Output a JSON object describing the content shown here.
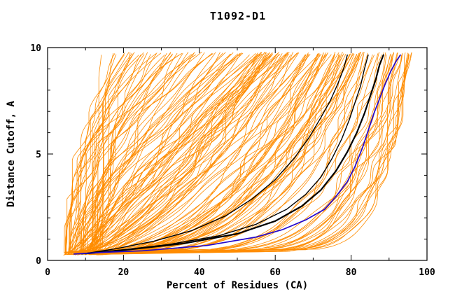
{
  "chart_data": {
    "type": "line",
    "title": "T1092-D1",
    "xlabel": "Percent of Residues (CA)",
    "ylabel": "Distance Cutoff, A",
    "xlim": [
      0,
      100
    ],
    "ylim": [
      0,
      10
    ],
    "x_major_ticks": [
      0,
      20,
      40,
      60,
      80,
      100
    ],
    "x_minor_step": 10,
    "y_major_ticks": [
      0,
      5,
      10
    ],
    "y_minor_step": 1,
    "grid": false,
    "legend": "none",
    "frame_color": "#000000",
    "ensemble": {
      "color": "#ff8c00",
      "count": 170,
      "seed": 1092,
      "x_start_range": [
        4,
        15
      ],
      "x_end_groups": [
        {
          "prob": 0.15,
          "range": [
            14,
            28
          ]
        },
        {
          "prob": 0.3,
          "range": [
            26,
            60
          ]
        },
        {
          "prob": 0.55,
          "range": [
            55,
            96
          ]
        }
      ],
      "y_start": 0.3,
      "y_end": 9.65
    },
    "series": [
      {
        "name": "highlight-black-1",
        "color": "#000000",
        "width": 1.4,
        "points": [
          [
            9,
            0.3
          ],
          [
            18,
            0.55
          ],
          [
            28,
            0.9
          ],
          [
            38,
            1.4
          ],
          [
            47,
            2.1
          ],
          [
            54,
            2.9
          ],
          [
            60,
            3.8
          ],
          [
            65,
            4.8
          ],
          [
            69,
            5.8
          ],
          [
            72,
            6.7
          ],
          [
            74.5,
            7.5
          ],
          [
            76.5,
            8.3
          ],
          [
            78,
            9.0
          ],
          [
            79,
            9.65
          ]
        ]
      },
      {
        "name": "highlight-black-2",
        "color": "#000000",
        "width": 2.2,
        "points": [
          [
            10,
            0.32
          ],
          [
            22,
            0.52
          ],
          [
            36,
            0.8
          ],
          [
            50,
            1.25
          ],
          [
            60,
            1.85
          ],
          [
            67,
            2.55
          ],
          [
            72,
            3.3
          ],
          [
            76,
            4.2
          ],
          [
            79,
            5.1
          ],
          [
            81.5,
            6.0
          ],
          [
            83.5,
            6.9
          ],
          [
            85,
            7.7
          ],
          [
            86.5,
            8.5
          ],
          [
            87.5,
            9.2
          ],
          [
            88.5,
            9.65
          ]
        ]
      },
      {
        "name": "highlight-black-3",
        "color": "#000000",
        "width": 1.4,
        "points": [
          [
            9,
            0.32
          ],
          [
            20,
            0.5
          ],
          [
            32,
            0.75
          ],
          [
            45,
            1.15
          ],
          [
            55,
            1.7
          ],
          [
            63,
            2.4
          ],
          [
            68,
            3.1
          ],
          [
            72,
            3.9
          ],
          [
            75,
            4.8
          ],
          [
            77.5,
            5.7
          ],
          [
            79.5,
            6.6
          ],
          [
            81,
            7.4
          ],
          [
            82.5,
            8.2
          ],
          [
            83.5,
            9.0
          ],
          [
            84.5,
            9.65
          ]
        ]
      },
      {
        "name": "reference-blue",
        "color": "#2408cc",
        "width": 1.7,
        "points": [
          [
            7,
            0.3
          ],
          [
            15,
            0.38
          ],
          [
            25,
            0.45
          ],
          [
            42,
            0.7
          ],
          [
            55,
            1.1
          ],
          [
            62,
            1.45
          ],
          [
            68,
            1.9
          ],
          [
            73,
            2.4
          ],
          [
            76,
            3.0
          ],
          [
            79,
            3.7
          ],
          [
            81,
            4.4
          ],
          [
            83,
            5.3
          ],
          [
            84.5,
            6.1
          ],
          [
            86,
            6.9
          ],
          [
            87.5,
            7.6
          ],
          [
            89,
            8.3
          ],
          [
            90.5,
            8.9
          ],
          [
            92,
            9.4
          ],
          [
            93,
            9.65
          ]
        ]
      }
    ]
  }
}
